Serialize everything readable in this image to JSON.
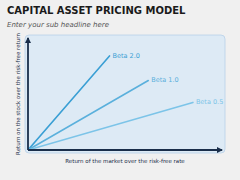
{
  "chart_data": {
    "type": "line",
    "title": "CAPITAL ASSET PRICING MODEL",
    "subtitle": "Enter your sub headline here",
    "x_label": "Return of the market over the risk-free rate",
    "y_label": "Return on the stock over the risk-free return",
    "series": [
      {
        "name": "Beta 2.0",
        "color": "#3a9fd4",
        "x": [
          0,
          0.42
        ],
        "values": [
          0,
          0.84
        ]
      },
      {
        "name": "Beta 1.0",
        "color": "#5ab0dc",
        "x": [
          0,
          0.62
        ],
        "values": [
          0,
          0.62
        ]
      },
      {
        "name": "Beta 0.5",
        "color": "#7cc4e8",
        "x": [
          0,
          0.85
        ],
        "values": [
          0,
          0.425
        ]
      }
    ],
    "xlim": [
      0,
      1
    ],
    "ylim": [
      0,
      1
    ],
    "xticks": [],
    "yticks": [],
    "tick_labels": false,
    "grid": false
  }
}
